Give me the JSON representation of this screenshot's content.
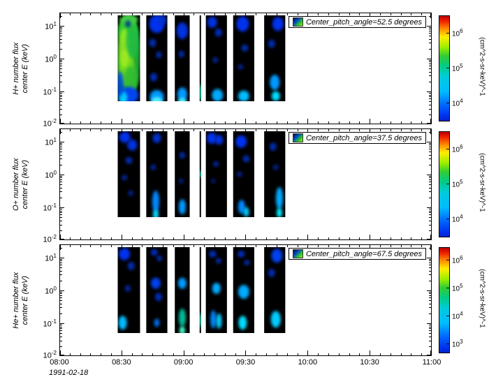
{
  "figure": {
    "background": "#ffffff",
    "axis_color": "#000000"
  },
  "chart_data": {
    "type": "heatmap",
    "subtype": "spectrogram",
    "date_label": "1991-02-18",
    "strip_background": "#000000",
    "x_axis": {
      "range_hours": [
        8,
        11
      ],
      "major_tick_hours": [
        8,
        8.5,
        9,
        9.5,
        10,
        10.5,
        11
      ],
      "major_tick_labels": [
        "08:00",
        "08:30",
        "09:00",
        "09:30",
        "10:00",
        "10:30",
        "11:00"
      ],
      "minor_tick_step_hours": 0.0833333
    },
    "y_axis": {
      "scale": "log",
      "range_exponents": [
        -2,
        1.4
      ],
      "major_tick_exponents": [
        1,
        0,
        -1,
        -2
      ]
    },
    "colormap_stops": [
      [
        0,
        "#bb0000"
      ],
      [
        0.05,
        "#ee2200"
      ],
      [
        0.12,
        "#ff8800"
      ],
      [
        0.2,
        "#ffee00"
      ],
      [
        0.3,
        "#99ee00"
      ],
      [
        0.38,
        "#33cc33"
      ],
      [
        0.48,
        "#00cc88"
      ],
      [
        0.58,
        "#00ccdd"
      ],
      [
        0.72,
        "#00bbff"
      ],
      [
        0.85,
        "#0066ff"
      ],
      [
        0.95,
        "#0033ee"
      ],
      [
        1,
        "#0022cc"
      ]
    ],
    "legend_swatch_colors": [
      "#001133",
      "#0044cc",
      "#22bb33",
      "#99ee22"
    ],
    "panels": [
      {
        "id": "h-plus",
        "ylabel_lines": [
          "H+ number flux",
          "center E (keV)"
        ],
        "legend_label": "Center_pitch_angle=52.5 degrees",
        "colorbar": {
          "unit_label": "(cm^2-s-sr-keV)^-1",
          "tick_exponents": [
            6,
            5,
            4
          ],
          "range_exponents": [
            3.5,
            6.5
          ]
        },
        "segments": [
          {
            "t": [
              8.47,
              8.65
            ],
            "blobs": [
              [
                0.5,
                0.48,
                16,
                60,
                "#22aa33",
                1
              ],
              [
                0.45,
                0.18,
                14,
                20,
                "#33cc33",
                1
              ],
              [
                0.38,
                0.6,
                11,
                26,
                "#77dd22",
                0.9
              ],
              [
                0.3,
                0.38,
                8,
                28,
                "#aaee22",
                0.75
              ],
              [
                0.66,
                0.3,
                9,
                24,
                "#22bb44",
                0.9
              ],
              [
                0.6,
                0.74,
                10,
                18,
                "#33bb33",
                0.9
              ],
              [
                0.5,
                0.05,
                13,
                7,
                "#44cc44",
                1
              ],
              [
                0.46,
                0.1,
                4,
                5,
                "#004488",
                1
              ],
              [
                0.5,
                0.93,
                14,
                12,
                "#0044ee",
                1
              ],
              [
                0.24,
                0.96,
                6,
                9,
                "#00ccff",
                1
              ],
              [
                0.11,
                0.8,
                5,
                18,
                "#0055dd",
                0.9
              ]
            ]
          },
          {
            "t": [
              8.7,
              8.87
            ],
            "blobs": [
              [
                0.5,
                0.1,
                11,
                13,
                "#0033ee",
                1
              ],
              [
                0.76,
                0.05,
                6,
                7,
                "#0033cc",
                0.9
              ],
              [
                0.3,
                0.32,
                5,
                6,
                "#0030bb",
                0.9
              ],
              [
                0.6,
                0.46,
                4,
                5,
                "#0030bb",
                0.9
              ],
              [
                0.35,
                0.72,
                5,
                6,
                "#0033cc",
                0.9
              ],
              [
                0.5,
                0.95,
                10,
                10,
                "#0099ff",
                1
              ],
              [
                0.5,
                1.0,
                8,
                6,
                "#55eeff",
                1
              ]
            ]
          },
          {
            "t": [
              8.93,
              9.05
            ],
            "blobs": [
              [
                0.5,
                0.18,
                8,
                12,
                "#0033dd",
                1
              ],
              [
                0.45,
                0.45,
                4,
                5,
                "#0030bb",
                0.9
              ],
              [
                0.5,
                0.92,
                7,
                10,
                "#0099ff",
                1
              ],
              [
                0.5,
                1.0,
                6,
                5,
                "#44eeff",
                1
              ]
            ]
          },
          {
            "t": [
              9.13,
              9.14
            ],
            "blobs": [
              [
                0.5,
                0.9,
                2,
                12,
                "#00ffcc",
                1
              ]
            ]
          },
          {
            "t": [
              9.18,
              9.35
            ],
            "blobs": [
              [
                0.3,
                0.08,
                7,
                8,
                "#0033dd",
                1
              ],
              [
                0.6,
                0.2,
                5,
                6,
                "#0033cc",
                0.9
              ],
              [
                0.45,
                0.52,
                4,
                4,
                "#002aaa",
                0.9
              ],
              [
                0.55,
                0.93,
                8,
                9,
                "#00aaff",
                1
              ]
            ]
          },
          {
            "t": [
              9.4,
              9.57
            ],
            "blobs": [
              [
                0.45,
                0.1,
                9,
                11,
                "#0033ee",
                1
              ],
              [
                0.55,
                0.38,
                5,
                5,
                "#0030bb",
                0.9
              ],
              [
                0.35,
                0.6,
                4,
                4,
                "#002aaa",
                0.8
              ],
              [
                0.5,
                0.94,
                8,
                8,
                "#00bbff",
                1
              ]
            ]
          },
          {
            "t": [
              9.65,
              9.82
            ],
            "blobs": [
              [
                0.65,
                0.1,
                8,
                10,
                "#0033ee",
                1
              ],
              [
                0.35,
                0.33,
                5,
                6,
                "#0030bb",
                0.9
              ],
              [
                0.5,
                0.78,
                7,
                11,
                "#0099ff",
                1
              ],
              [
                0.55,
                0.94,
                6,
                7,
                "#00ddff",
                1
              ]
            ]
          }
        ]
      },
      {
        "id": "o-plus",
        "ylabel_lines": [
          "O+ number flux",
          "center E (keV)"
        ],
        "legend_label": "Center_pitch_angle=37.5 degrees",
        "colorbar": {
          "unit_label": "(cm^2-s-sr-keV)^-1",
          "tick_exponents": [
            6,
            5,
            4
          ],
          "range_exponents": [
            3.5,
            6.5
          ]
        },
        "segments": [
          {
            "t": [
              8.47,
              8.65
            ],
            "blobs": [
              [
                0.32,
                0.07,
                8,
                8,
                "#0033ee",
                1
              ],
              [
                0.65,
                0.16,
                7,
                8,
                "#0033dd",
                1
              ],
              [
                0.5,
                0.34,
                5,
                5,
                "#0030bb",
                0.9
              ],
              [
                0.3,
                0.54,
                4,
                4,
                "#002aaa",
                0.9
              ],
              [
                0.58,
                0.72,
                4,
                4,
                "#002aaa",
                0.8
              ]
            ]
          },
          {
            "t": [
              8.7,
              8.87
            ],
            "blobs": [
              [
                0.5,
                0.08,
                6,
                7,
                "#0033cc",
                1
              ],
              [
                0.33,
                0.42,
                4,
                4,
                "#002aaa",
                0.9
              ],
              [
                0.45,
                0.82,
                5,
                16,
                "#0088ff",
                1
              ],
              [
                0.45,
                0.97,
                4,
                7,
                "#00ddff",
                1
              ]
            ]
          },
          {
            "t": [
              8.93,
              9.05
            ],
            "blobs": [
              [
                0.5,
                0.28,
                4,
                5,
                "#0030bb",
                0.9
              ],
              [
                0.42,
                0.58,
                3,
                4,
                "#002aaa",
                0.8
              ],
              [
                0.5,
                0.88,
                5,
                11,
                "#0099ff",
                1
              ]
            ]
          },
          {
            "t": [
              9.13,
              9.14
            ],
            "blobs": [
              [
                0.5,
                0.5,
                2,
                5,
                "#00ffcc",
                1
              ]
            ]
          },
          {
            "t": [
              9.18,
              9.35
            ],
            "blobs": [
              [
                0.28,
                0.08,
                7,
                8,
                "#0033ee",
                1
              ],
              [
                0.62,
                0.1,
                6,
                7,
                "#0033dd",
                1
              ],
              [
                0.48,
                0.38,
                4,
                4,
                "#002aaa",
                0.9
              ],
              [
                0.35,
                0.58,
                3,
                3,
                "#002aaa",
                0.8
              ]
            ]
          },
          {
            "t": [
              9.4,
              9.57
            ],
            "blobs": [
              [
                0.38,
                0.12,
                8,
                9,
                "#0033ee",
                1
              ],
              [
                0.62,
                0.32,
                5,
                5,
                "#0030bb",
                0.9
              ],
              [
                0.3,
                0.5,
                4,
                4,
                "#002aaa",
                0.8
              ],
              [
                0.4,
                0.88,
                5,
                10,
                "#0088ff",
                1
              ],
              [
                0.62,
                0.94,
                4,
                7,
                "#00ccff",
                1
              ]
            ]
          },
          {
            "t": [
              9.65,
              9.82
            ],
            "blobs": [
              [
                0.42,
                0.18,
                5,
                6,
                "#0030bb",
                0.9
              ],
              [
                0.55,
                0.42,
                4,
                4,
                "#002aaa",
                0.8
              ],
              [
                0.72,
                0.78,
                5,
                16,
                "#00aaff",
                1
              ],
              [
                0.72,
                0.95,
                4,
                7,
                "#00eeff",
                1
              ]
            ]
          }
        ]
      },
      {
        "id": "he-plus",
        "ylabel_lines": [
          "He+ number flux",
          "center E (keV)"
        ],
        "legend_label": "Center_pitch_angle=67.5 degrees",
        "colorbar": {
          "unit_label": "(cm^2-s-sr-keV)^-1",
          "tick_exponents": [
            6,
            5,
            4,
            3
          ],
          "range_exponents": [
            2.7,
            6.45
          ]
        },
        "segments": [
          {
            "t": [
              8.47,
              8.65
            ],
            "blobs": [
              [
                0.3,
                0.08,
                8,
                9,
                "#0033ee",
                1
              ],
              [
                0.6,
                0.22,
                5,
                6,
                "#0030bb",
                0.9
              ],
              [
                0.45,
                0.48,
                4,
                5,
                "#002aaa",
                0.9
              ],
              [
                0.22,
                0.88,
                6,
                10,
                "#00bbff",
                1
              ]
            ]
          },
          {
            "t": [
              8.7,
              8.87
            ],
            "blobs": [
              [
                0.38,
                0.06,
                5,
                5,
                "#0033cc",
                0.9
              ],
              [
                0.62,
                0.13,
                4,
                4,
                "#0030bb",
                0.9
              ],
              [
                0.45,
                0.42,
                7,
                8,
                "#0040ee",
                1
              ],
              [
                0.58,
                0.58,
                5,
                6,
                "#0033cc",
                0.9
              ],
              [
                0.5,
                0.88,
                4,
                6,
                "#0077ff",
                0.9
              ]
            ]
          },
          {
            "t": [
              8.93,
              9.05
            ],
            "blobs": [
              [
                0.5,
                0.42,
                6,
                8,
                "#0099ff",
                1
              ],
              [
                0.5,
                0.82,
                5,
                13,
                "#00bb99",
                1
              ],
              [
                0.5,
                0.97,
                4,
                6,
                "#44ffcc",
                1
              ]
            ]
          },
          {
            "t": [
              9.13,
              9.14
            ],
            "blobs": [
              [
                0.5,
                0.85,
                2,
                10,
                "#00ffcc",
                1
              ]
            ]
          },
          {
            "t": [
              9.18,
              9.35
            ],
            "blobs": [
              [
                0.32,
                0.08,
                5,
                5,
                "#0033cc",
                0.9
              ],
              [
                0.6,
                0.16,
                4,
                4,
                "#0030bb",
                0.9
              ],
              [
                0.5,
                0.48,
                6,
                8,
                "#00aaff",
                1
              ],
              [
                0.35,
                0.84,
                4,
                13,
                "#0088ff",
                1
              ],
              [
                0.62,
                0.86,
                4,
                11,
                "#00ccff",
                1
              ]
            ]
          },
          {
            "t": [
              9.4,
              9.57
            ],
            "blobs": [
              [
                0.38,
                0.08,
                5,
                5,
                "#0033cc",
                0.9
              ],
              [
                0.65,
                0.18,
                4,
                4,
                "#0030bb",
                0.9
              ],
              [
                0.5,
                0.52,
                8,
                10,
                "#00aaff",
                1
              ],
              [
                0.45,
                0.88,
                6,
                10,
                "#00ddff",
                1
              ]
            ]
          },
          {
            "t": [
              9.65,
              9.82
            ],
            "blobs": [
              [
                0.6,
                0.1,
                8,
                10,
                "#0040ee",
                1
              ],
              [
                0.35,
                0.3,
                5,
                6,
                "#0030bb",
                0.9
              ],
              [
                0.55,
                0.84,
                7,
                12,
                "#00ccff",
                1
              ]
            ]
          }
        ]
      }
    ]
  }
}
